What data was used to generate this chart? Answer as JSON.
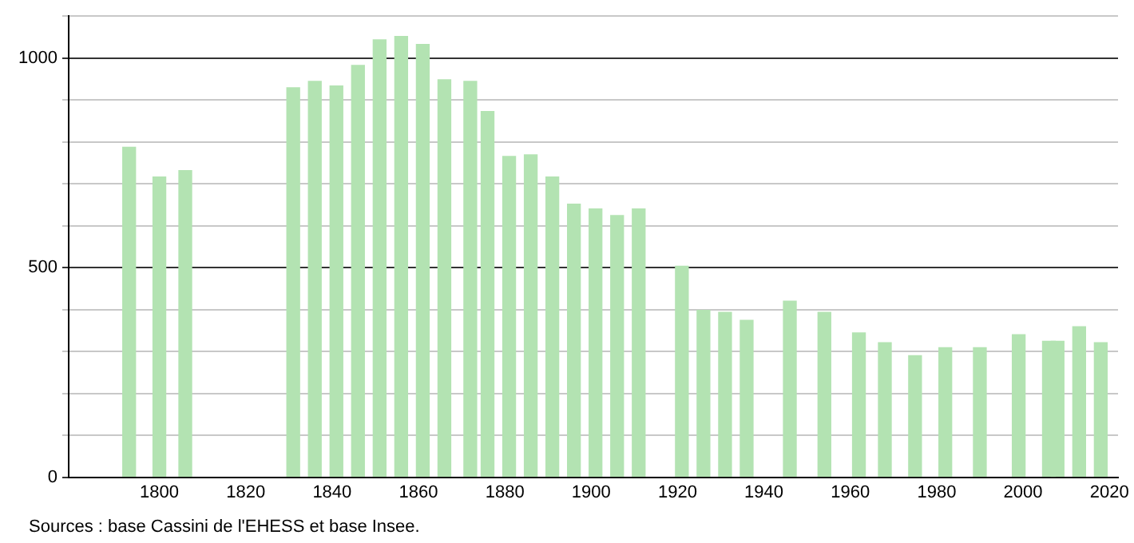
{
  "chart_data": {
    "type": "bar",
    "x": [
      1793,
      1800,
      1806,
      1831,
      1836,
      1841,
      1846,
      1851,
      1856,
      1861,
      1866,
      1872,
      1876,
      1881,
      1886,
      1891,
      1896,
      1901,
      1906,
      1911,
      1921,
      1926,
      1931,
      1936,
      1946,
      1954,
      1962,
      1968,
      1975,
      1982,
      1990,
      1999,
      2006,
      2008,
      2013,
      2018
    ],
    "values": [
      787,
      716,
      731,
      929,
      944,
      933,
      982,
      1043,
      1051,
      1032,
      948,
      944,
      872,
      765,
      769,
      716,
      651,
      640,
      624,
      640,
      503,
      398,
      393,
      374,
      420,
      393,
      344,
      321,
      290,
      309,
      309,
      340,
      324,
      324,
      359,
      321
    ],
    "color": "#b3e3b2",
    "xlim": [
      1779,
      2022
    ],
    "xticks": [
      1800,
      1820,
      1840,
      1860,
      1880,
      1900,
      1920,
      1940,
      1960,
      1980,
      2000,
      2020
    ],
    "ylim": [
      0,
      1100
    ],
    "yticks": [
      0,
      {
        "value": 100,
        "label": null
      },
      {
        "value": 200,
        "label": null
      },
      {
        "value": 300,
        "label": null
      },
      {
        "value": 400,
        "label": null
      },
      500,
      {
        "value": 600,
        "label": null
      },
      {
        "value": 700,
        "label": null
      },
      {
        "value": 800,
        "label": null
      },
      {
        "value": 900,
        "label": null
      },
      1000,
      {
        "value": 1100,
        "label": null
      }
    ],
    "grid": "y",
    "legend": false,
    "annotations": [
      "Sources : base Cassini de l'EHESS et base Insee."
    ]
  }
}
